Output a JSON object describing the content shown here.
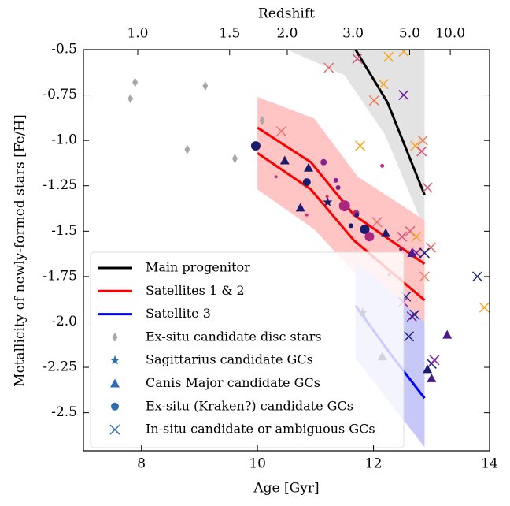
{
  "chart_data": {
    "type": "line",
    "x_label": "Age [Gyr]",
    "y_label": "Metallicity of newly-formed stars [Fe/H]",
    "x2_label": "Redshift",
    "xlim": [
      7,
      14
    ],
    "xticks": [
      8,
      10,
      12,
      14
    ],
    "ylim": [
      -2.71,
      -0.5
    ],
    "yticks": [
      -0.5,
      -0.75,
      {
        "value": -1.0,
        "label": "-1.0"
      },
      -1.25,
      -1.5,
      -1.75,
      {
        "value": -2.0,
        "label": "-2.0"
      },
      -2.25,
      -2.5
    ],
    "x2ticks": [
      {
        "value": 1.0,
        "label": "1.0"
      },
      1.5,
      {
        "value": 2.0,
        "label": "2.0"
      },
      {
        "value": 3.0,
        "label": "3.0"
      },
      {
        "value": 5.0,
        "label": "5.0"
      },
      {
        "value": 10.0,
        "label": "10.0"
      }
    ],
    "legend": "lower left",
    "series": [
      {
        "name": "Main progenitor",
        "color": "#000000",
        "band_color": "#e3e3e3",
        "lines": [
          {
            "x": [
              11.69,
              12.24,
              12.88
            ],
            "values": [
              -0.5,
              -0.79,
              -1.3
            ]
          }
        ],
        "band": {
          "x": [
            10.51,
            11.5,
            12.2,
            12.88
          ],
          "lower": [
            -0.5,
            -0.64,
            -0.97,
            -1.49
          ],
          "upper": [
            -0.5,
            -0.5,
            -0.5,
            -0.5
          ]
        }
      },
      {
        "name": "Satellites 1 & 2",
        "color": "#ff0000",
        "band_color": "#ffc4c4",
        "lines": [
          {
            "x": [
              10,
              10.92,
              11.66,
              12.88
            ],
            "values": [
              -0.93,
              -1.12,
              -1.41,
              -1.68
            ]
          },
          {
            "x": [
              10,
              10.92,
              11.66,
              12.88
            ],
            "values": [
              -1.07,
              -1.27,
              -1.55,
              -1.88
            ]
          }
        ],
        "band": {
          "x": [
            10,
            10.98,
            11.73,
            12.88
          ],
          "lower": [
            -1.27,
            -1.49,
            -1.75,
            -2.05
          ],
          "upper": [
            -0.76,
            -0.88,
            -1.2,
            -1.44
          ]
        }
      },
      {
        "name": "Satellite 3",
        "color": "#0000ff",
        "band_color": "#c8c8f8",
        "lines": [
          {
            "x": [
              11.69,
              12.3,
              12.88
            ],
            "values": [
              -1.91,
              -2.18,
              -2.42
            ]
          }
        ],
        "band": {
          "x": [
            11.69,
            12.88
          ],
          "lower": [
            -2.2,
            -2.69
          ],
          "upper": [
            -1.66,
            -2.0
          ]
        }
      },
      {
        "name": "Ex-situ candidate disc stars",
        "marker": "diamond",
        "color": "#a8a8a8",
        "x": [
          7.81,
          7.89,
          8.79,
          9.1,
          9.61,
          10.08
        ],
        "values": [
          -0.77,
          -0.68,
          -1.05,
          -0.7,
          -1.1,
          -0.89
        ]
      },
      {
        "name": "Sagittarius candidate GCs",
        "marker": "star",
        "color": "#2a6db5",
        "x": [
          11.21,
          11.81
        ],
        "values": [
          -1.34,
          -1.95
        ],
        "colors": [
          "#1c1c6e",
          "#1c1c6e"
        ]
      },
      {
        "name": "Canis Major candidate GCs",
        "marker": "triangle",
        "color": "#2a6db5",
        "x": [
          10.47,
          10.88,
          10.74,
          12.21,
          12.66,
          12.15,
          13.27,
          12.93,
          13.0
        ],
        "values": [
          -1.11,
          -1.15,
          -1.37,
          -1.51,
          -1.62,
          -2.19,
          -2.07,
          -2.26,
          -2.31
        ],
        "colors": [
          "#1c1c6e",
          "#1c1c6e",
          "#1c1c6e",
          "#1c1c6e",
          "#4a1a8a",
          "#1c1c6e",
          "#4a1a8a",
          "#1c1c6e",
          "#4a1a8a"
        ]
      },
      {
        "name": "Ex-situ (Kraken?) candidate GCs",
        "marker": "circle",
        "color": "#2a6db5",
        "x": [
          9.97,
          10.85,
          11.14,
          10.32,
          11.35,
          11.39,
          11.5,
          11.2,
          11.7,
          11.71,
          11.61,
          11.85,
          11.93,
          12.15,
          12.27,
          12.47,
          10.85
        ],
        "values": [
          -1.03,
          -1.23,
          -1.12,
          -1.2,
          -1.22,
          -1.26,
          -1.36,
          -1.31,
          -1.4,
          -1.41,
          -1.47,
          -1.49,
          -1.53,
          -1.14,
          -1.74,
          -1.6,
          -1.41
        ],
        "sizes": [
          6,
          5,
          4,
          2,
          3,
          3,
          7,
          2,
          4,
          3,
          3,
          6,
          6,
          2.5,
          2,
          2,
          2
        ],
        "colors": [
          "#1c1c6e",
          "#1c1c6e",
          "#8a2096",
          "#c8367a",
          "#8a2096",
          "#7a1e8e",
          "#a8287f",
          "#c8367a",
          "#a8287f",
          "#2a1c7a",
          "#1c1c6e",
          "#1c1c6e",
          "#a8287f",
          "#b8307f",
          "#b8307f",
          "#7a1e8e",
          "#c8367a"
        ]
      },
      {
        "name": "In-situ candidate or ambiguous GCs",
        "marker": "cross",
        "color": "#2a6db5",
        "x": [
          11.23,
          10.41,
          11.72,
          12.26,
          12.52,
          12.17,
          12.01,
          12.52,
          11.77,
          12.85,
          12.72,
          12.83,
          12.93,
          12.06,
          12.63,
          12.49,
          12.74,
          12.99,
          12.74,
          12.88,
          12.88,
          13.79,
          12.56,
          12.51,
          12.66,
          12.71,
          12.61,
          13.0,
          13.05,
          13.91
        ],
        "values": [
          -0.6,
          -0.95,
          -0.55,
          -0.54,
          -0.51,
          -0.69,
          -0.78,
          -0.75,
          -1.03,
          -1.0,
          -1.03,
          -1.06,
          -1.26,
          -1.45,
          -1.5,
          -1.53,
          -1.53,
          -1.59,
          -1.62,
          -1.62,
          -1.75,
          -1.75,
          -1.86,
          -1.89,
          -1.97,
          -1.96,
          -2.08,
          -2.23,
          -2.21,
          -1.92
        ],
        "colors": [
          "#e06c6c",
          "#e87070",
          "#d84f7a",
          "#f5a623",
          "#f5a623",
          "#f5a623",
          "#f07a50",
          "#6a1b9a",
          "#f5a623",
          "#f08060",
          "#f5a623",
          "#d84f7a",
          "#e0607a",
          "#e87070",
          "#e0607a",
          "#d84f7a",
          "#f5a623",
          "#e06c6c",
          "#6a1b9a",
          "#1a237e",
          "#f08060",
          "#1a237e",
          "#1a237e",
          "#8e24aa",
          "#7b1fa2",
          "#1a237e",
          "#1a237e",
          "#1a237e",
          "#8e24aa",
          "#f5a623"
        ]
      }
    ]
  }
}
